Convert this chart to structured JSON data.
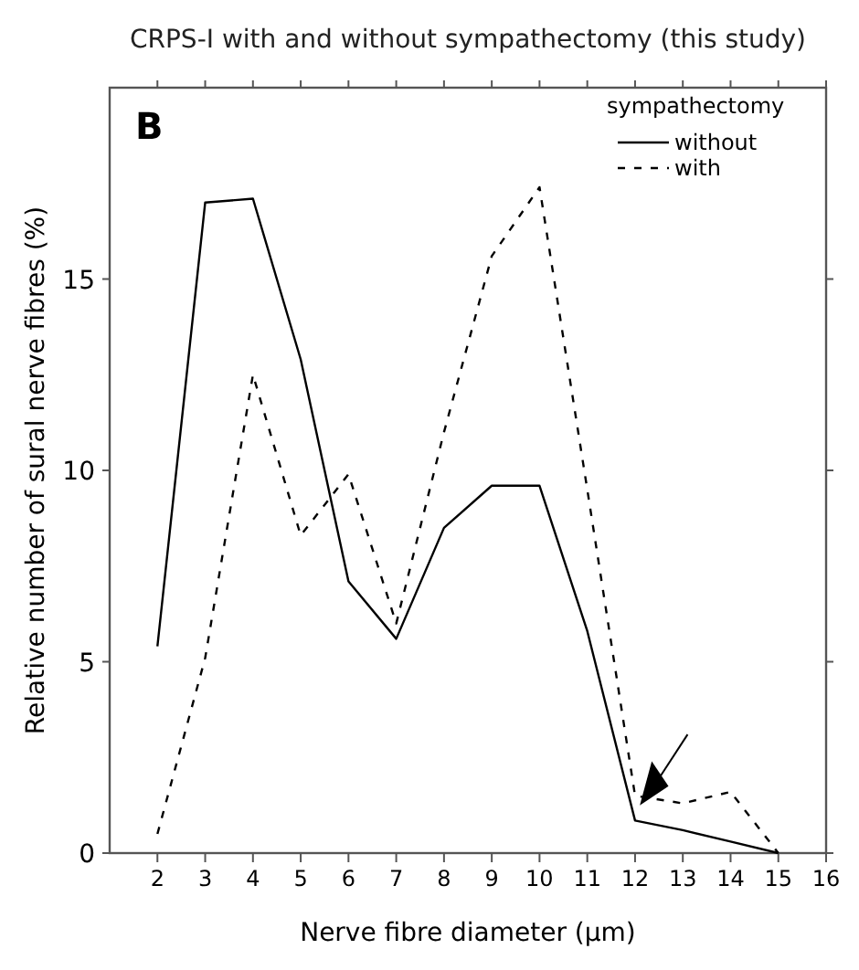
{
  "chart_data": {
    "type": "line",
    "title": "CRPS-I with and without sympathectomy (this study)",
    "xlabel": "Nerve fibre diameter (µm)",
    "ylabel": "Relative number of sural nerve fibres (%)",
    "legend_title": "sympathectomy",
    "annotations": [
      "B"
    ],
    "x": [
      2,
      3,
      4,
      5,
      6,
      7,
      8,
      9,
      10,
      11,
      12,
      13,
      14,
      15
    ],
    "series": [
      {
        "name": "without",
        "color": "#000000",
        "line_style": "solid",
        "values": [
          5.4,
          17.0,
          17.1,
          12.9,
          7.1,
          5.6,
          8.5,
          9.6,
          9.6,
          5.8,
          0.85,
          0.6,
          0.3,
          0
        ]
      },
      {
        "name": "with",
        "color": "#000000",
        "line_style": "dashed",
        "values": [
          0.5,
          5.1,
          12.5,
          8.3,
          9.9,
          6.0,
          11.0,
          15.6,
          17.4,
          9.5,
          1.5,
          1.3,
          1.6,
          0
        ]
      }
    ],
    "xlim": [
      1,
      16
    ],
    "ylim": [
      0,
      20
    ],
    "xticks": [
      2,
      3,
      4,
      5,
      6,
      7,
      8,
      9,
      10,
      11,
      12,
      13,
      14,
      15,
      16
    ],
    "yticks": [
      0,
      5,
      10,
      15
    ],
    "grid": false,
    "legend": "top right",
    "marker": "none"
  }
}
